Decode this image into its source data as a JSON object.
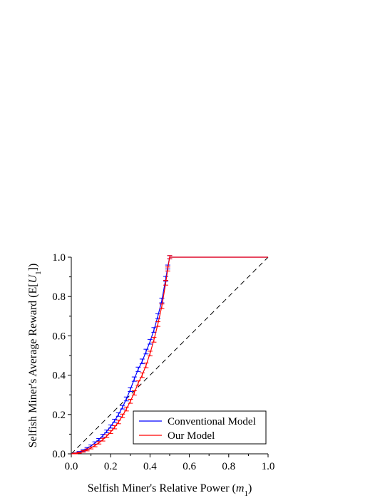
{
  "chart_data": {
    "type": "line",
    "title": "",
    "xlabel": {
      "main": "Selfish Miner's Relative Power (",
      "var": "m",
      "sub": "1",
      "tail": ")"
    },
    "ylabel": {
      "main": "Selfish Miner's Average Reward (E[",
      "var": "U",
      "sub": "1",
      "tail": "])"
    },
    "xlim": [
      0.0,
      1.0
    ],
    "ylim": [
      0.0,
      1.0
    ],
    "xticks": [
      "0.0",
      "0.2",
      "0.4",
      "0.6",
      "0.8",
      "1.0"
    ],
    "yticks": [
      "0.0",
      "0.2",
      "0.4",
      "0.6",
      "0.8",
      "1.0"
    ],
    "grid": false,
    "legend_position": "bottom-right",
    "series": [
      {
        "name": "Conventional Model",
        "color": "#0000ff",
        "x": [
          0.0,
          0.02,
          0.04,
          0.06,
          0.08,
          0.1,
          0.12,
          0.14,
          0.16,
          0.18,
          0.2,
          0.22,
          0.24,
          0.26,
          0.28,
          0.3,
          0.32,
          0.34,
          0.36,
          0.38,
          0.4,
          0.42,
          0.44,
          0.46,
          0.48,
          0.49,
          0.5,
          1.0
        ],
        "y": [
          0.0,
          0.003,
          0.009,
          0.017,
          0.027,
          0.04,
          0.055,
          0.072,
          0.092,
          0.114,
          0.139,
          0.168,
          0.2,
          0.237,
          0.279,
          0.327,
          0.38,
          0.43,
          0.47,
          0.52,
          0.57,
          0.63,
          0.7,
          0.78,
          0.89,
          0.95,
          1.0,
          1.0
        ],
        "error": [
          0.0,
          0.002,
          0.003,
          0.004,
          0.005,
          0.005,
          0.006,
          0.006,
          0.007,
          0.007,
          0.008,
          0.008,
          0.009,
          0.009,
          0.01,
          0.01,
          0.011,
          0.011,
          0.012,
          0.012,
          0.012,
          0.012,
          0.012,
          0.012,
          0.012,
          0.01,
          0.008,
          0.0
        ]
      },
      {
        "name": "Our Model",
        "color": "#ff0000",
        "x": [
          0.0,
          0.02,
          0.04,
          0.06,
          0.08,
          0.1,
          0.12,
          0.14,
          0.16,
          0.18,
          0.2,
          0.22,
          0.24,
          0.26,
          0.28,
          0.3,
          0.32,
          0.34,
          0.36,
          0.38,
          0.4,
          0.42,
          0.44,
          0.46,
          0.48,
          0.49,
          0.5,
          1.0
        ],
        "y": [
          0.0,
          0.002,
          0.006,
          0.012,
          0.02,
          0.03,
          0.042,
          0.056,
          0.072,
          0.09,
          0.111,
          0.135,
          0.162,
          0.193,
          0.228,
          0.267,
          0.31,
          0.36,
          0.4,
          0.45,
          0.51,
          0.58,
          0.66,
          0.75,
          0.87,
          0.94,
          1.0,
          1.0
        ],
        "error": [
          0.0,
          0.002,
          0.003,
          0.004,
          0.005,
          0.005,
          0.006,
          0.006,
          0.007,
          0.007,
          0.008,
          0.008,
          0.009,
          0.009,
          0.01,
          0.01,
          0.011,
          0.011,
          0.012,
          0.012,
          0.012,
          0.012,
          0.012,
          0.012,
          0.012,
          0.01,
          0.008,
          0.0
        ]
      }
    ],
    "reference_line": {
      "x": [
        0.0,
        1.0
      ],
      "y": [
        0.0,
        1.0
      ],
      "color": "#000000",
      "style": "dashed"
    }
  }
}
